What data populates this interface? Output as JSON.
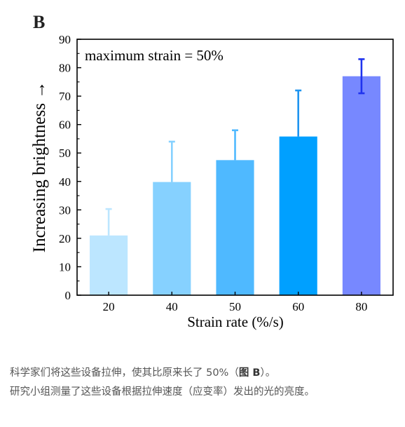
{
  "figure": {
    "panel_label": "B"
  },
  "chart_data": {
    "type": "bar",
    "title": "",
    "annotation": "maximum strain = 50%",
    "xlabel": "Strain rate (%/s)",
    "ylabel": "Increasing brightness →",
    "categories": [
      "20",
      "40",
      "50",
      "60",
      "80"
    ],
    "values": [
      21,
      39.8,
      47.5,
      55.8,
      77
    ],
    "error_upper": [
      30.3,
      54,
      58,
      72,
      83
    ],
    "error_lower": [
      null,
      null,
      null,
      null,
      71
    ],
    "ylim": [
      0,
      90
    ],
    "yticks": [
      0,
      10,
      20,
      30,
      40,
      50,
      60,
      70,
      80,
      90
    ],
    "grid": false,
    "legend": "none",
    "bar_colors": [
      "#bce6ff",
      "#86d1ff",
      "#4fb9ff",
      "#00a0ff",
      "#7788ff"
    ],
    "error_colors": [
      "#bce6ff",
      "#86d1ff",
      "#4fb9ff",
      "#1f95f0",
      "#1f33ee"
    ]
  },
  "caption": {
    "line1_before": "科学家们将这些设备拉伸，使其比原来长了 50%（",
    "line1_bold": "图 B",
    "line1_after": "）。",
    "line2": "研究小组测量了这些设备根据拉伸速度（应变率）发出的光的亮度。"
  }
}
